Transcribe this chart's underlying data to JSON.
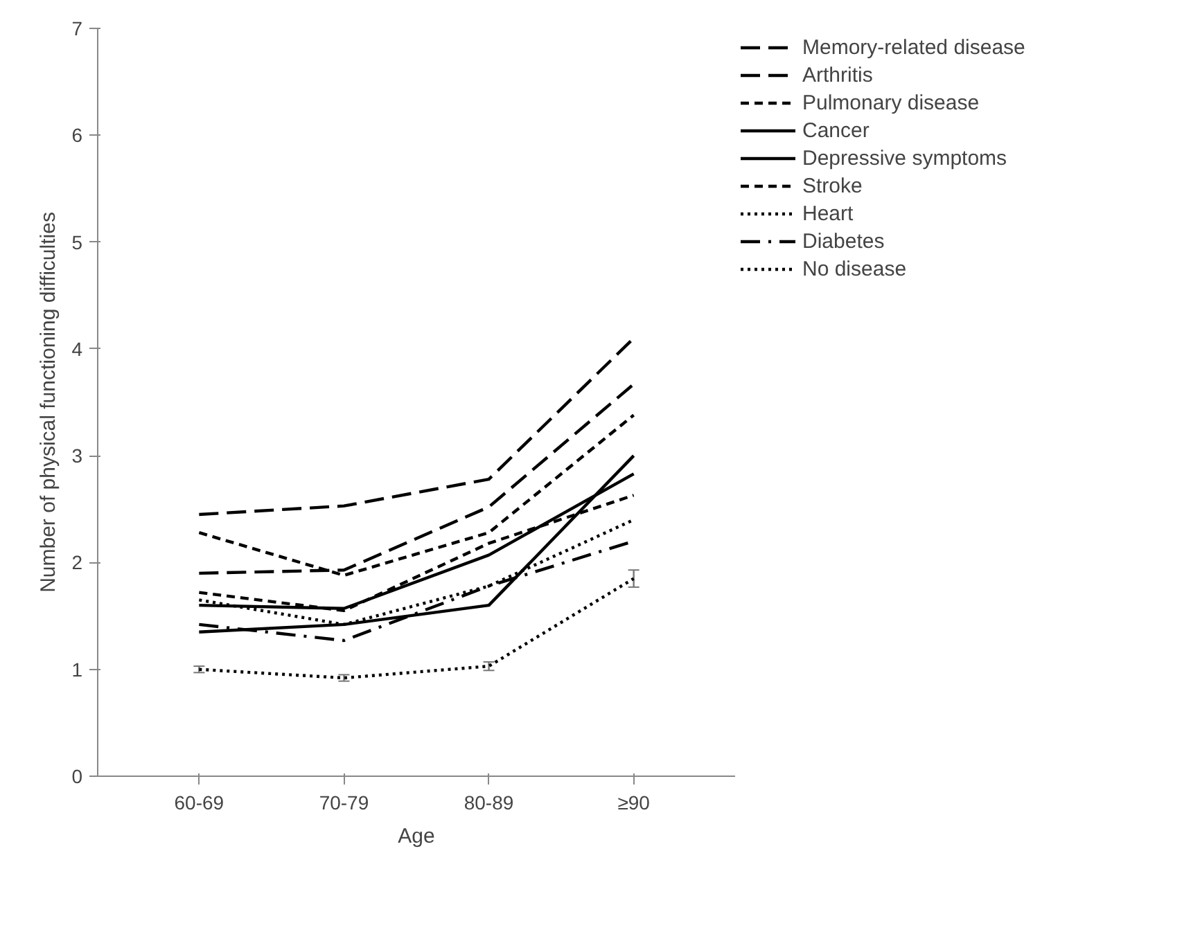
{
  "chart_data": {
    "type": "line",
    "xlabel": "Age",
    "ylabel": "Number of physical functioning difficulties",
    "categories": [
      "60-69",
      "70-79",
      "80-89",
      "≥90"
    ],
    "ylim": [
      0,
      7
    ],
    "yticks": [
      0,
      1,
      2,
      3,
      4,
      5,
      6,
      7
    ],
    "grid": false,
    "legend": "top right",
    "marker": "none",
    "series": [
      {
        "name": "Memory-related disease",
        "color": "#000000",
        "line_style": "longdash",
        "values": [
          2.45,
          2.53,
          2.78,
          4.1
        ]
      },
      {
        "name": "Arthritis",
        "color": "#000000",
        "line_style": "longdash",
        "values": [
          1.9,
          1.93,
          2.52,
          3.67
        ]
      },
      {
        "name": "Pulmonary disease",
        "color": "#000000",
        "line_style": "dashed",
        "values": [
          2.28,
          1.88,
          2.28,
          3.38
        ]
      },
      {
        "name": "Cancer",
        "color": "#000000",
        "line_style": "solid",
        "values": [
          1.6,
          1.57,
          2.07,
          2.83
        ]
      },
      {
        "name": "Depressive symptoms",
        "color": "#000000",
        "line_style": "solid",
        "values": [
          1.35,
          1.42,
          1.6,
          3.0
        ]
      },
      {
        "name": "Stroke",
        "color": "#000000",
        "line_style": "dashed",
        "values": [
          1.72,
          1.55,
          2.18,
          2.63
        ]
      },
      {
        "name": "Heart",
        "color": "#000000",
        "line_style": "dotted",
        "values": [
          1.65,
          1.42,
          1.78,
          2.4
        ]
      },
      {
        "name": "Diabetes",
        "color": "#000000",
        "line_style": "dashdot",
        "values": [
          1.42,
          1.27,
          1.78,
          2.2
        ]
      },
      {
        "name": "No disease",
        "color": "#000000",
        "line_style": "dotted",
        "values": [
          1.0,
          0.92,
          1.03,
          1.85
        ],
        "errors": [
          0.03,
          0.03,
          0.04,
          0.08
        ]
      }
    ]
  }
}
